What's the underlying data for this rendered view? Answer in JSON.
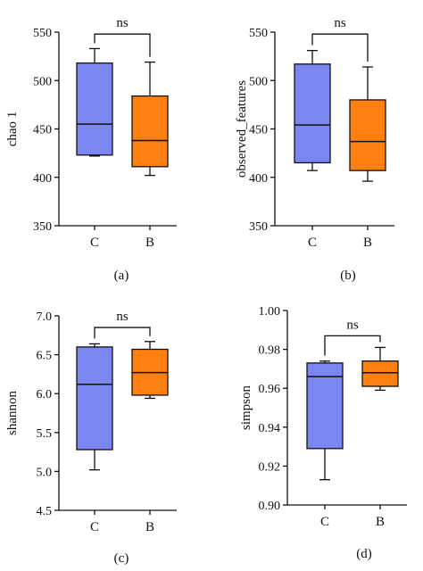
{
  "chart_data": [
    {
      "type": "box",
      "panel_label": "(a)",
      "ylabel": "chao 1",
      "ylim": [
        350,
        550
      ],
      "yticks": [
        350,
        400,
        450,
        500,
        550
      ],
      "categories": [
        "C",
        "B"
      ],
      "boxes": [
        {
          "category": "C",
          "min": 422,
          "q1": 423,
          "median": 455,
          "q3": 518,
          "max": 533,
          "color": "#7b86f0"
        },
        {
          "category": "B",
          "min": 402,
          "q1": 411,
          "median": 438,
          "q3": 484,
          "max": 519,
          "color": "#ff7f11"
        }
      ],
      "significance": "ns"
    },
    {
      "type": "box",
      "panel_label": "(b)",
      "ylabel": "observed_features",
      "ylim": [
        350,
        550
      ],
      "yticks": [
        350,
        400,
        450,
        500,
        550
      ],
      "categories": [
        "C",
        "B"
      ],
      "boxes": [
        {
          "category": "C",
          "min": 407,
          "q1": 415,
          "median": 454,
          "q3": 517,
          "max": 531,
          "color": "#7b86f0"
        },
        {
          "category": "B",
          "min": 396,
          "q1": 407,
          "median": 437,
          "q3": 480,
          "max": 514,
          "color": "#ff7f11"
        }
      ],
      "significance": "ns"
    },
    {
      "type": "box",
      "panel_label": "(c)",
      "ylabel": "shannon",
      "ylim": [
        4.5,
        7.0
      ],
      "yticks": [
        "4.5",
        "5.0",
        "5.5",
        "6.0",
        "6.5",
        "7.0"
      ],
      "categories": [
        "C",
        "B"
      ],
      "boxes": [
        {
          "category": "C",
          "min": 5.02,
          "q1": 5.28,
          "median": 6.12,
          "q3": 6.6,
          "max": 6.64,
          "color": "#7b86f0"
        },
        {
          "category": "B",
          "min": 5.94,
          "q1": 5.98,
          "median": 6.27,
          "q3": 6.57,
          "max": 6.67,
          "color": "#ff7f11"
        }
      ],
      "significance": "ns"
    },
    {
      "type": "box",
      "panel_label": "(d)",
      "ylabel": "simpson",
      "ylim": [
        0.9,
        1.0
      ],
      "yticks": [
        "0.90",
        "0.92",
        "0.94",
        "0.96",
        "0.98",
        "1.00"
      ],
      "categories": [
        "C",
        "B"
      ],
      "boxes": [
        {
          "category": "C",
          "min": 0.913,
          "q1": 0.929,
          "median": 0.966,
          "q3": 0.973,
          "max": 0.974,
          "color": "#7b86f0"
        },
        {
          "category": "B",
          "min": 0.959,
          "q1": 0.961,
          "median": 0.968,
          "q3": 0.974,
          "max": 0.981,
          "color": "#ff7f11"
        }
      ],
      "significance": "ns"
    }
  ]
}
